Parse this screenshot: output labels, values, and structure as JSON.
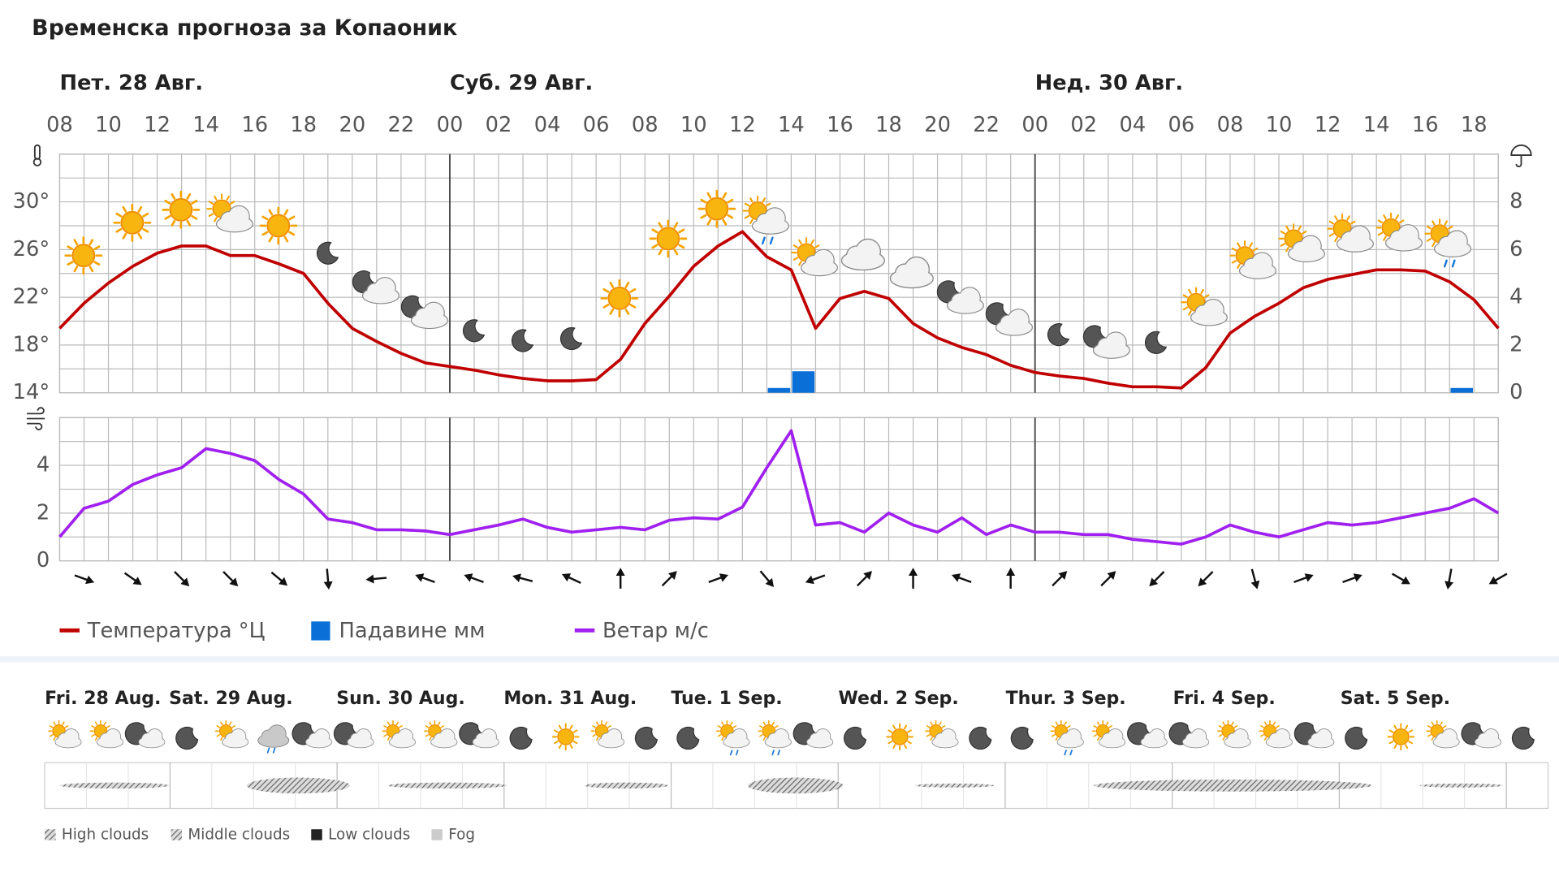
{
  "chart_data": [
    {
      "type": "line",
      "title": "Временска прогноза за Копаоник",
      "days": [
        {
          "value": 0,
          "label": "Пет. 28 Авг."
        },
        {
          "value": 16,
          "label": "Суб. 29 Авг."
        },
        {
          "value": 40,
          "label": "Нед. 30 Авг."
        }
      ],
      "x": [
        0,
        1,
        2,
        3,
        4,
        5,
        6,
        7,
        8,
        9,
        10,
        11,
        12,
        13,
        14,
        15,
        16,
        17,
        18,
        19,
        20,
        21,
        22,
        23,
        24,
        25,
        26,
        27,
        28,
        29,
        30,
        31,
        32,
        33,
        34,
        35,
        36,
        37,
        38,
        39,
        40,
        41,
        42,
        43,
        44,
        45,
        46,
        47,
        48,
        49,
        50,
        51,
        52,
        53,
        54,
        55,
        56,
        57,
        58,
        59
      ],
      "xlim": [
        0,
        59
      ],
      "xticks": [
        {
          "value": 0,
          "label": "08"
        },
        {
          "value": 2,
          "label": "10"
        },
        {
          "value": 4,
          "label": "12"
        },
        {
          "value": 6,
          "label": "14"
        },
        {
          "value": 8,
          "label": "16"
        },
        {
          "value": 10,
          "label": "18"
        },
        {
          "value": 12,
          "label": "20"
        },
        {
          "value": 14,
          "label": "22"
        },
        {
          "value": 16,
          "label": "00"
        },
        {
          "value": 18,
          "label": "02"
        },
        {
          "value": 20,
          "label": "04"
        },
        {
          "value": 22,
          "label": "06"
        },
        {
          "value": 24,
          "label": "08"
        },
        {
          "value": 26,
          "label": "10"
        },
        {
          "value": 28,
          "label": "12"
        },
        {
          "value": 30,
          "label": "14"
        },
        {
          "value": 32,
          "label": "16"
        },
        {
          "value": 34,
          "label": "18"
        },
        {
          "value": 36,
          "label": "20"
        },
        {
          "value": 38,
          "label": "22"
        },
        {
          "value": 40,
          "label": "00"
        },
        {
          "value": 42,
          "label": "02"
        },
        {
          "value": 44,
          "label": "04"
        },
        {
          "value": 46,
          "label": "06"
        },
        {
          "value": 48,
          "label": "08"
        },
        {
          "value": 50,
          "label": "10"
        },
        {
          "value": 52,
          "label": "12"
        },
        {
          "value": 54,
          "label": "14"
        },
        {
          "value": 56,
          "label": "16"
        },
        {
          "value": 58,
          "label": "18"
        }
      ],
      "ylim": [
        14,
        34
      ],
      "yticks": [
        {
          "value": 14,
          "label": "14°"
        },
        {
          "value": 18,
          "label": "18°"
        },
        {
          "value": 22,
          "label": "22°"
        },
        {
          "value": 26,
          "label": "26°"
        },
        {
          "value": 30,
          "label": "30°"
        }
      ],
      "y2lim": [
        0,
        10
      ],
      "y2ticks": [
        0,
        2,
        4,
        6,
        8
      ],
      "grid": true,
      "series": [
        {
          "name": "Температура °Ц",
          "color": "#c00000",
          "values": [
            19.4,
            21.5,
            23.2,
            24.6,
            25.7,
            26.3,
            26.3,
            25.5,
            25.5,
            24.8,
            24.0,
            21.5,
            19.4,
            18.3,
            17.3,
            16.5,
            16.2,
            15.9,
            15.5,
            15.2,
            15.0,
            15.0,
            15.1,
            16.8,
            19.8,
            22.1,
            24.6,
            26.3,
            27.5,
            25.4,
            24.3,
            19.4,
            21.9,
            22.5,
            21.9,
            19.8,
            18.6,
            17.8,
            17.2,
            16.3,
            15.7,
            15.4,
            15.2,
            14.8,
            14.5,
            14.5,
            14.4,
            16.1,
            19.0,
            20.4,
            21.5,
            22.8,
            23.5,
            23.9,
            24.3,
            24.3,
            24.2,
            23.3,
            21.8,
            19.4
          ]
        },
        {
          "name": "Падавине мм",
          "color": "#0a6fd6",
          "type": "bar",
          "axis": "y2",
          "x": [
            29,
            30,
            57
          ],
          "values": [
            0.2,
            0.9,
            0.2
          ]
        }
      ]
    },
    {
      "type": "line",
      "x": [
        0,
        1,
        2,
        3,
        4,
        5,
        6,
        7,
        8,
        9,
        10,
        11,
        12,
        13,
        14,
        15,
        16,
        17,
        18,
        19,
        20,
        21,
        22,
        23,
        24,
        25,
        26,
        27,
        28,
        29,
        30,
        31,
        32,
        33,
        34,
        35,
        36,
        37,
        38,
        39,
        40,
        41,
        42,
        43,
        44,
        45,
        46,
        47,
        48,
        49,
        50,
        51,
        52,
        53,
        54,
        55,
        56,
        57,
        58,
        59
      ],
      "xlim": [
        0,
        59
      ],
      "ylim": [
        0,
        6
      ],
      "yticks": [
        0,
        2,
        4
      ],
      "grid": true,
      "series": [
        {
          "name": "Ветар м/с",
          "color": "#a020f0",
          "values": [
            1.0,
            2.2,
            2.5,
            3.2,
            3.6,
            3.9,
            4.7,
            4.5,
            4.2,
            3.4,
            2.8,
            1.75,
            1.6,
            1.3,
            1.3,
            1.25,
            1.1,
            1.3,
            1.5,
            1.75,
            1.4,
            1.2,
            1.3,
            1.4,
            1.3,
            1.7,
            1.8,
            1.75,
            2.25,
            3.9,
            5.45,
            1.5,
            1.6,
            1.2,
            2.0,
            1.5,
            1.2,
            1.8,
            1.1,
            1.5,
            1.2,
            1.2,
            1.1,
            1.1,
            0.9,
            0.8,
            0.7,
            1.0,
            1.5,
            1.2,
            1.0,
            1.3,
            1.6,
            1.5,
            1.6,
            1.8,
            2.0,
            2.2,
            2.6,
            2.0
          ]
        }
      ],
      "directions_x": [
        1,
        3,
        5,
        7,
        9,
        11,
        13,
        15,
        17,
        19,
        21,
        23,
        25,
        27,
        29,
        31,
        33,
        35,
        37,
        39,
        41,
        43,
        45,
        47,
        49,
        51,
        53,
        55,
        57,
        59
      ],
      "directions": [
        110,
        125,
        135,
        135,
        130,
        175,
        265,
        290,
        290,
        285,
        295,
        0,
        45,
        70,
        140,
        250,
        45,
        0,
        290,
        0,
        45,
        45,
        225,
        225,
        165,
        70,
        70,
        120,
        190,
        240
      ]
    },
    {
      "type": "timeline",
      "categories": [
        "Fri. 28 Aug.",
        "Sat. 29 Aug.",
        "Sun. 30 Aug.",
        "Mon. 31 Aug.",
        "Tue. 1 Sep.",
        "Wed. 2 Sep.",
        "Thur. 3 Sep.",
        "Fri. 4 Sep.",
        "Sat. 5 Sep."
      ],
      "legend": [
        "High clouds",
        "Middle clouds",
        "Low clouds",
        "Fog"
      ]
    }
  ]
}
